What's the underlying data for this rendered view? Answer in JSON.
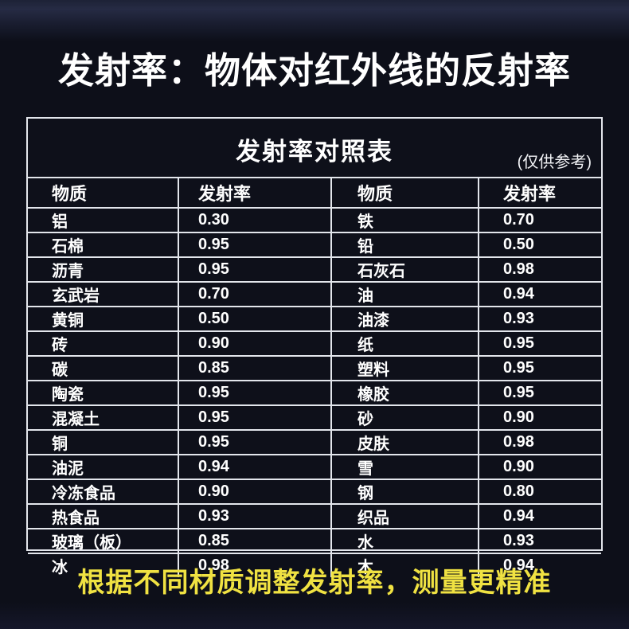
{
  "page": {
    "main_title": "发射率：物体对红外线的反射率",
    "footer_note": "根据不同材质调整发射率，测量更精准"
  },
  "table": {
    "title": "发射率对照表",
    "note": "(仅供参考)",
    "headers": [
      "物质",
      "发射率",
      "物质",
      "发射率"
    ],
    "rows": [
      [
        "铝",
        "0.30",
        "铁",
        "0.70"
      ],
      [
        "石棉",
        "0.95",
        "铅",
        "0.50"
      ],
      [
        "沥青",
        "0.95",
        "石灰石",
        "0.98"
      ],
      [
        "玄武岩",
        "0.70",
        "油",
        "0.94"
      ],
      [
        "黄铜",
        "0.50",
        "油漆",
        "0.93"
      ],
      [
        "砖",
        "0.90",
        "纸",
        "0.95"
      ],
      [
        "碳",
        "0.85",
        "塑料",
        "0.95"
      ],
      [
        "陶瓷",
        "0.95",
        "橡胶",
        "0.95"
      ],
      [
        "混凝土",
        "0.95",
        "砂",
        "0.90"
      ],
      [
        "铜",
        "0.95",
        "皮肤",
        "0.98"
      ],
      [
        "油泥",
        "0.94",
        "雪",
        "0.90"
      ],
      [
        "冷冻食品",
        "0.90",
        "钢",
        "0.80"
      ],
      [
        "热食品",
        "0.93",
        "织品",
        "0.94"
      ],
      [
        "玻璃（板）",
        "0.85",
        "水",
        "0.93"
      ],
      [
        "冰",
        "0.98",
        "木",
        "0.94"
      ]
    ]
  },
  "colors": {
    "background": "#0d0f19",
    "table_line": "#e3e6ec",
    "text_white": "#ffffff",
    "accent_yellow": "#f0e242"
  }
}
